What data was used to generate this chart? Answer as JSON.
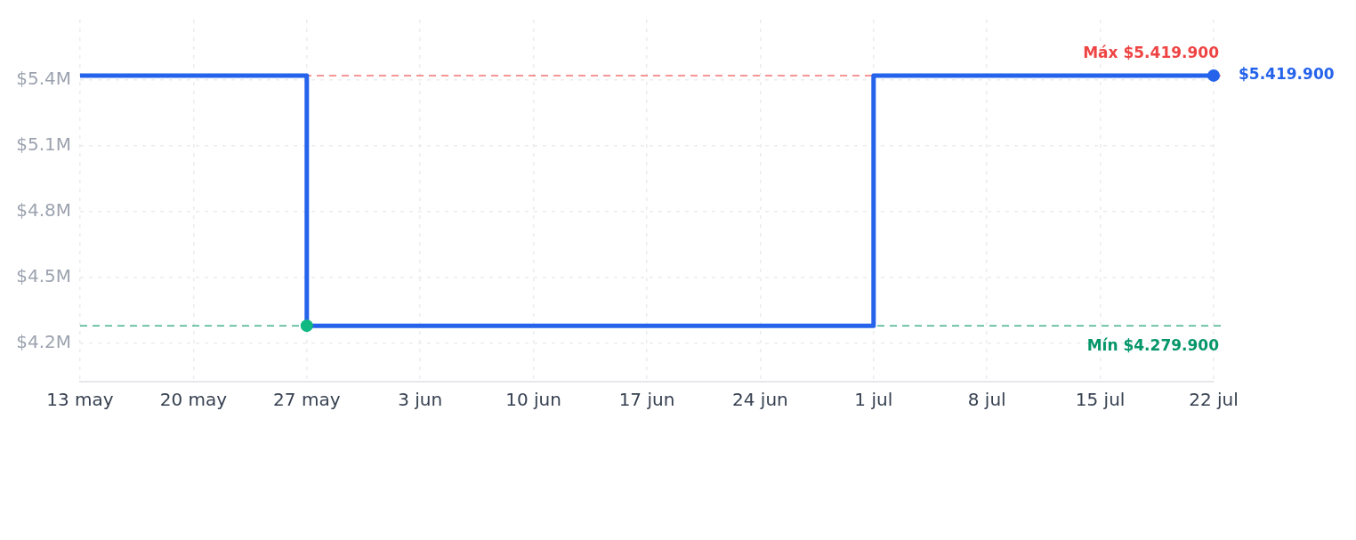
{
  "chart_data": {
    "type": "step",
    "x": [
      "--05-13",
      "--05-27",
      "--07-01",
      "--07-22"
    ],
    "series": [
      {
        "color": "#2563eb",
        "values": [
          5419900,
          4279900,
          5419900,
          5419900
        ],
        "marker": "none"
      },
      {
        "type": "scatter",
        "x": [
          "--05-27"
        ],
        "color": "#10b981",
        "values": [
          4279900
        ],
        "marker": "circle"
      },
      {
        "type": "scatter",
        "x": [
          "--07-22"
        ],
        "color": "#2563eb",
        "values": [
          5419900
        ],
        "marker": "circle",
        "value_labels": [
          "$5.419.900"
        ]
      }
    ],
    "xlim": [
      "--05-13",
      "--07-22"
    ],
    "xticks": [
      {
        "value": "--05-13",
        "label": "13 may"
      },
      {
        "value": "--05-20",
        "label": "20 may"
      },
      {
        "value": "--05-27",
        "label": "27 may"
      },
      {
        "value": "--06-03",
        "label": "3 jun"
      },
      {
        "value": "--06-10",
        "label": "10 jun"
      },
      {
        "value": "--06-17",
        "label": "17 jun"
      },
      {
        "value": "--06-24",
        "label": "24 jun"
      },
      {
        "value": "--07-01",
        "label": "1 jul"
      },
      {
        "value": "--07-08",
        "label": "8 jul"
      },
      {
        "value": "--07-15",
        "label": "15 jul"
      },
      {
        "value": "--07-22",
        "label": "22 jul"
      }
    ],
    "ylim": [
      4025000,
      5675000
    ],
    "yticks": [
      {
        "value": 4200000,
        "label": "$4.2M"
      },
      {
        "value": 4500000,
        "label": "$4.5M"
      },
      {
        "value": 4800000,
        "label": "$4.8M"
      },
      {
        "value": 5100000,
        "label": "$5.1M"
      },
      {
        "value": 5400000,
        "label": "$5.4M"
      }
    ],
    "grid": true,
    "ref_lines": [
      {
        "axis": "y",
        "value": 5419900,
        "label": "Máx $5.419.900",
        "color": "#ef4444",
        "line_style": "dashed"
      },
      {
        "axis": "y",
        "value": 4279900,
        "label": "Mín $4.279.900",
        "color": "#059669",
        "line_style": "dashed"
      }
    ]
  }
}
